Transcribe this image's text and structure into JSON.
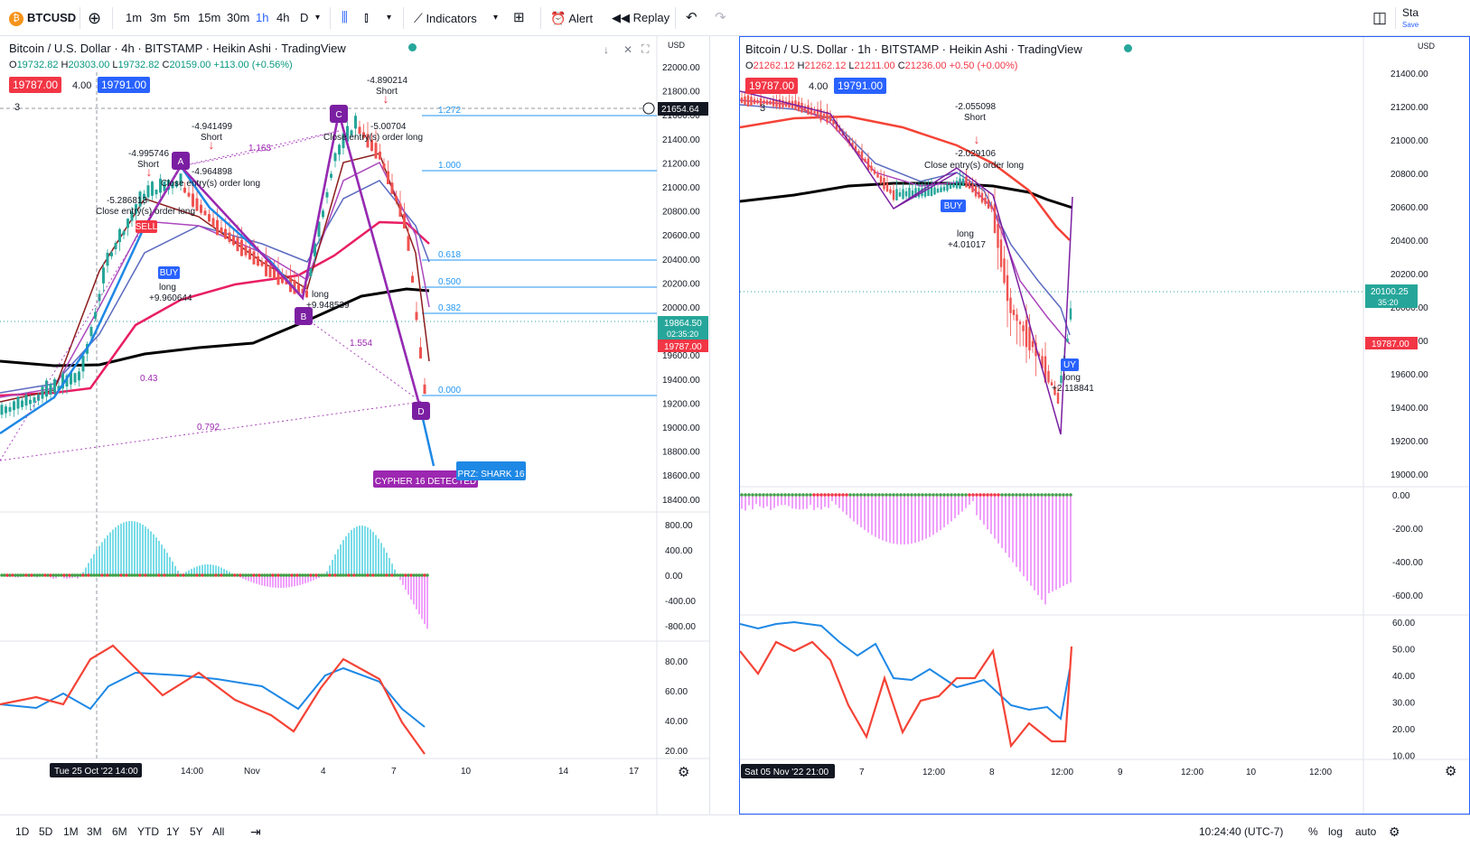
{
  "toolbar": {
    "symbol": "BTCUSD",
    "intervals": [
      "1m",
      "3m",
      "5m",
      "15m",
      "30m",
      "1h",
      "4h",
      "D"
    ],
    "active_interval": "1h",
    "indicators_label": "Indicators",
    "alert_label": "Alert",
    "replay_label": "Replay",
    "save_label": "Sta",
    "save_sub": "Save"
  },
  "bottom": {
    "ranges": [
      "1D",
      "5D",
      "1M",
      "3M",
      "6M",
      "YTD",
      "1Y",
      "5Y",
      "All"
    ],
    "clock": "10:24:40 (UTC-7)",
    "pct_label": "%",
    "log_label": "log",
    "auto_label": "auto"
  },
  "left_chart": {
    "title": "Bitcoin / U.S. Dollar · 4h · BITSTAMP · Heikin Ashi · TradingView",
    "ohlc": {
      "o": "19732.82",
      "h": "20303.00",
      "l": "19732.82",
      "c": "20159.00",
      "chg": "+113.00 (+0.56%)"
    },
    "bid": "19787.00",
    "spread": "4.00",
    "ask": "19791.00",
    "currency": "USD",
    "price_axis": [
      "22000.00",
      "21800.00",
      "21600.00",
      "21400.00",
      "21200.00",
      "21000.00",
      "20800.00",
      "20600.00",
      "20400.00",
      "20200.00",
      "20000.00",
      "19800.00",
      "19600.00",
      "19400.00",
      "19200.00",
      "19000.00",
      "18800.00",
      "18600.00",
      "18400.00"
    ],
    "crosshair_price": "21654.64",
    "current_price": "19864.50",
    "countdown": "02:35:20",
    "bid_axis": "19787.00",
    "macd_axis": [
      "800.00",
      "400.00",
      "0.00",
      "-400.00",
      "-800.00"
    ],
    "rsi_axis": [
      "80.00",
      "60.00",
      "40.00",
      "20.00"
    ],
    "time_axis": [
      "Tue 25 Oct '22  14:00",
      "14:00",
      "Nov",
      "4",
      "7",
      "10",
      "14",
      "17"
    ],
    "fib_levels": [
      "1.272",
      "1.000",
      "0.618",
      "0.500",
      "0.382",
      "0.000"
    ],
    "ratios": [
      "1.163",
      "0.43",
      "0.792",
      "1.554"
    ],
    "points": [
      "A",
      "C",
      "D",
      "B"
    ],
    "badges": {
      "cypher": "CYPHER 16 DETECTED",
      "shark": "SHARK 16",
      "prz": "PRZ"
    },
    "annotations": [
      "-4.995746",
      "Short",
      "-5.286813",
      "Close entry(s) order long",
      "-4.941499",
      "Short",
      "-4.964898",
      "Close entry(s) order long",
      "-4.890214",
      "Short",
      "-5.00704",
      "Close entry(s) order long",
      "long",
      "+9.960644",
      "long",
      "+9.948539",
      "SELL",
      "BUY",
      "3"
    ]
  },
  "right_chart": {
    "title": "Bitcoin / U.S. Dollar · 1h · BITSTAMP · Heikin Ashi · TradingView",
    "ohlc": {
      "o": "21262.12",
      "h": "21262.12",
      "l": "21211.00",
      "c": "21236.00",
      "chg": "+0.50 (+0.00%)"
    },
    "bid": "19787.00",
    "spread": "4.00",
    "ask": "19791.00",
    "currency": "USD",
    "price_axis": [
      "21400.00",
      "21200.00",
      "21000.00",
      "20800.00",
      "20600.00",
      "20400.00",
      "20200.00",
      "20000.00",
      "19800.00",
      "19600.00",
      "19400.00",
      "19200.00",
      "19000.00"
    ],
    "current_price": "20100.25",
    "countdown": "35:20",
    "bid_axis": "19787.00",
    "macd_axis": [
      "0.00",
      "-200.00",
      "-400.00",
      "-600.00"
    ],
    "rsi_axis": [
      "60.00",
      "50.00",
      "40.00",
      "30.00",
      "20.00",
      "10.00"
    ],
    "time_axis": [
      "Sat 05 Nov '22  21:00",
      "7",
      "12:00",
      "8",
      "12:00",
      "9",
      "12:00",
      "10",
      "12:00"
    ],
    "annotations": [
      "-2.055098",
      "Short",
      "-2.029106",
      "Close entry(s) order long",
      "long",
      "+4.01017",
      "long",
      "+2.118841",
      "BUY",
      "UY",
      "3"
    ]
  },
  "colors": {
    "up": "#26a69a",
    "down": "#ef5350",
    "accent": "#2962ff",
    "purple": "#9c27b0",
    "fib": "#2196f3"
  }
}
